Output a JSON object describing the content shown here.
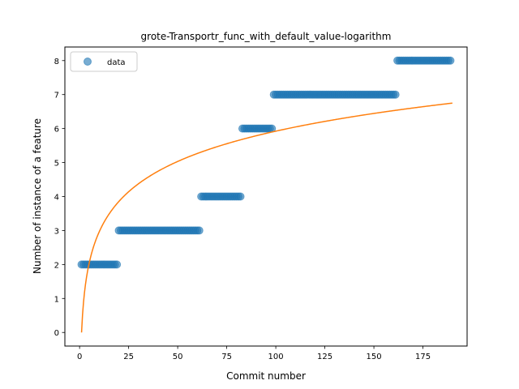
{
  "chart_data": {
    "type": "scatter",
    "title": "grote-Transportr_func_with_default_value-logarithm",
    "xlabel": "Commit number",
    "ylabel": "Number of instance of a feature",
    "xlim": [
      -7.5,
      197.5
    ],
    "ylim": [
      -0.4,
      8.4
    ],
    "xticks": [
      0,
      25,
      50,
      75,
      100,
      125,
      150,
      175
    ],
    "yticks": [
      0,
      1,
      2,
      3,
      4,
      5,
      6,
      7,
      8
    ],
    "legend": {
      "placement": "upper-left",
      "entries": [
        "data"
      ]
    },
    "grid": false,
    "series": [
      {
        "name": "data",
        "kind": "scatter",
        "color": "#1f77b4",
        "segments": [
          {
            "x_from": 1,
            "x_to": 19,
            "y": 2
          },
          {
            "x_from": 20,
            "x_to": 61,
            "y": 3
          },
          {
            "x_from": 62,
            "x_to": 82,
            "y": 4
          },
          {
            "x_from": 83,
            "x_to": 98,
            "y": 6
          },
          {
            "x_from": 99,
            "x_to": 161,
            "y": 7
          },
          {
            "x_from": 162,
            "x_to": 189,
            "y": 8
          }
        ]
      },
      {
        "kind": "line",
        "color": "#ff7f0e",
        "model": "logarithm",
        "formula": {
          "a": 1.2863,
          "b": 0,
          "x_from": 1,
          "x_to": 190
        }
      }
    ]
  }
}
